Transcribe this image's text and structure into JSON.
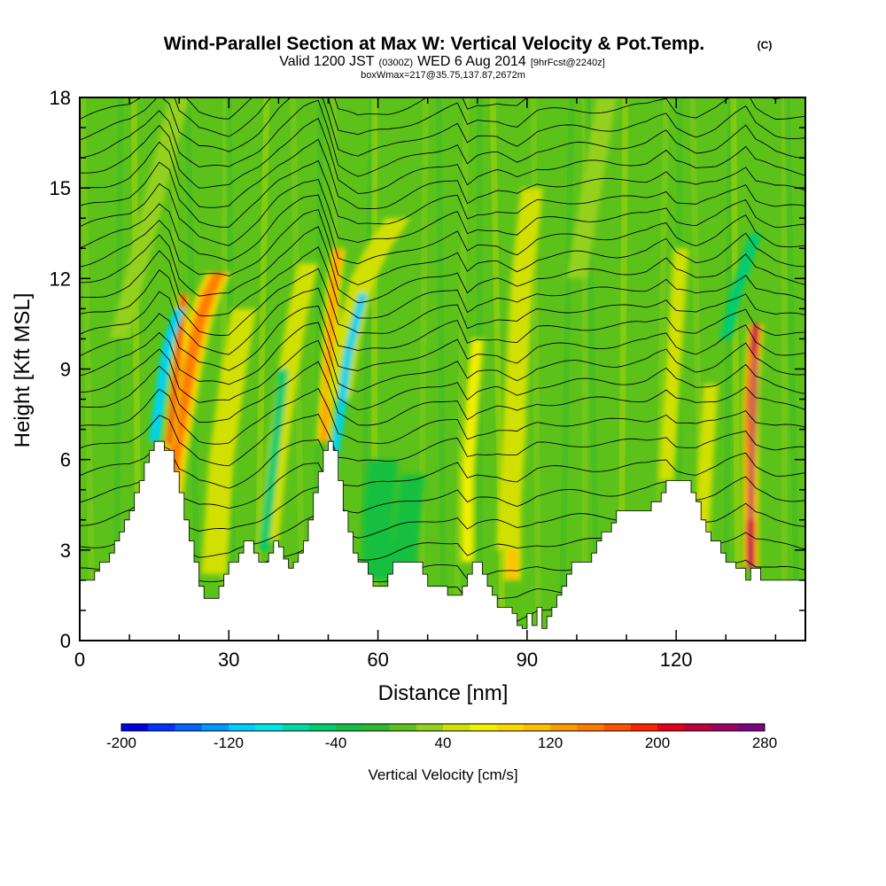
{
  "chart_data": {
    "type": "heatmap",
    "title": "Wind-Parallel Section at Max W: Vertical Velocity & Pot.Temp.",
    "title_mark": "(C)",
    "subtitle": {
      "valid": "Valid 1200 JST",
      "zulu": "(0300Z)",
      "date": "WED 6 Aug 2014",
      "fcst": "[9hrFcst@2240z]"
    },
    "subtitle2": "boxWmax=217@35.75,137.87,2672m",
    "xlabel": "Distance [nm]",
    "ylabel": "Height [Kft MSL]",
    "xlim": [
      0,
      146
    ],
    "ylim": [
      0,
      18
    ],
    "xticks": [
      "0",
      "30",
      "60",
      "90",
      "120"
    ],
    "xtick_values": [
      0,
      30,
      60,
      90,
      120
    ],
    "yticks": [
      "0",
      "3",
      "6",
      "9",
      "12",
      "15",
      "18"
    ],
    "ytick_values": [
      0,
      3,
      6,
      9,
      12,
      15,
      18
    ],
    "background_fill": "#5cc21a",
    "color_scale": {
      "label": "Vertical Velocity [cm/s]",
      "min": -200,
      "max": 280,
      "step": 20,
      "tick_labels": [
        "-200",
        "-120",
        "-40",
        "40",
        "120",
        "200",
        "280"
      ],
      "tick_values": [
        -200,
        -120,
        -40,
        40,
        120,
        200,
        280
      ],
      "colors": [
        "#0000e6",
        "#0033ff",
        "#0066ff",
        "#0099ff",
        "#00ccff",
        "#00e6e6",
        "#00d9a6",
        "#00cc70",
        "#12bf40",
        "#2eb82e",
        "#5cc21a",
        "#94d11a",
        "#d1e000",
        "#f0f000",
        "#ffd700",
        "#ffbf00",
        "#ff9a00",
        "#ff7a00",
        "#ff5200",
        "#ff2200",
        "#e6001a",
        "#c0003a",
        "#a00060",
        "#800080"
      ]
    },
    "terrain": {
      "x": [
        0,
        2,
        3,
        4,
        5,
        6,
        7,
        8,
        9,
        10,
        11,
        12,
        13,
        14,
        15,
        16,
        17,
        18,
        19,
        20,
        21,
        22,
        23,
        24,
        25,
        26,
        27,
        28,
        29,
        30,
        31,
        32,
        33,
        34,
        35,
        36,
        37,
        38,
        39,
        40,
        41,
        42,
        43,
        44,
        45,
        46,
        47,
        48,
        49,
        50,
        51,
        52,
        53,
        54,
        55,
        56,
        57,
        58,
        59,
        60,
        61,
        62,
        63,
        64,
        65,
        66,
        67,
        68,
        69,
        70,
        71,
        72,
        73,
        74,
        75,
        76,
        77,
        78,
        79,
        80,
        81,
        82,
        83,
        84,
        85,
        86,
        87,
        88,
        89,
        90,
        91,
        92,
        93,
        94,
        95,
        96,
        97,
        98,
        99,
        100,
        101,
        102,
        103,
        104,
        105,
        106,
        107,
        108,
        109,
        110,
        111,
        112,
        113,
        114,
        115,
        116,
        117,
        118,
        119,
        120,
        121,
        122,
        123,
        124,
        125,
        126,
        127,
        128,
        129,
        130,
        131,
        132,
        133,
        134,
        135,
        136,
        137,
        138,
        139,
        140,
        141,
        142,
        143,
        144,
        146
      ],
      "height": [
        2.0,
        2.0,
        2.3,
        2.6,
        2.6,
        2.9,
        3.3,
        3.6,
        4.0,
        4.3,
        4.9,
        5.3,
        5.9,
        6.3,
        6.6,
        6.6,
        6.3,
        6.3,
        5.6,
        4.9,
        4.0,
        3.3,
        2.6,
        1.8,
        1.4,
        1.4,
        1.4,
        1.8,
        2.2,
        2.6,
        2.6,
        2.9,
        3.3,
        3.3,
        2.9,
        2.6,
        2.6,
        2.9,
        3.3,
        3.1,
        2.7,
        2.4,
        2.6,
        2.9,
        3.3,
        4.0,
        4.9,
        5.6,
        6.3,
        6.6,
        6.3,
        5.3,
        4.3,
        3.6,
        2.9,
        2.6,
        2.6,
        2.2,
        1.8,
        1.8,
        1.8,
        2.2,
        2.6,
        2.6,
        2.6,
        2.6,
        2.6,
        2.6,
        2.2,
        1.8,
        1.8,
        1.8,
        1.8,
        1.5,
        1.5,
        1.5,
        1.8,
        2.2,
        2.6,
        2.6,
        2.2,
        1.8,
        1.5,
        1.1,
        1.1,
        1.1,
        0.9,
        0.5,
        0.4,
        0.9,
        0.5,
        1.1,
        0.4,
        0.8,
        1.1,
        1.5,
        1.8,
        2.2,
        2.6,
        2.6,
        2.6,
        2.6,
        2.9,
        3.3,
        3.6,
        3.6,
        3.9,
        4.3,
        4.3,
        4.3,
        4.3,
        4.3,
        4.3,
        4.3,
        4.6,
        4.6,
        4.9,
        5.3,
        5.3,
        5.3,
        5.3,
        5.3,
        4.9,
        4.6,
        4.0,
        3.6,
        3.3,
        3.3,
        2.9,
        2.6,
        2.6,
        2.4,
        2.4,
        2.0,
        2.4,
        2.4,
        2.0,
        2.0,
        2.0,
        2.0,
        2.0,
        2.0,
        2.0,
        2.0,
        2.0,
        2.0,
        2.0
      ]
    },
    "features": [
      {
        "kind": "updraft",
        "x": [
          17,
          19,
          22,
          24,
          26,
          28
        ],
        "y": [
          3.0,
          6.0,
          9.0,
          10.5,
          11.5,
          12.2
        ],
        "w": 2.6,
        "value": 150
      },
      {
        "kind": "updraft",
        "x": [
          18,
          19.5,
          21
        ],
        "y": [
          6.5,
          9.0,
          11.5
        ],
        "w": 1.1,
        "value": 200
      },
      {
        "kind": "downdraft",
        "x": [
          15,
          16.5,
          18,
          20
        ],
        "y": [
          6.6,
          8.5,
          10.0,
          11.0
        ],
        "w": 1.2,
        "value": -110
      },
      {
        "kind": "updraft",
        "x": [
          27,
          28.5,
          31,
          33
        ],
        "y": [
          2.2,
          6,
          9,
          11
        ],
        "w": 2.5,
        "value": 50
      },
      {
        "kind": "updraft",
        "x": [
          38,
          40,
          42,
          44,
          46
        ],
        "y": [
          3.3,
          6.5,
          9,
          11,
          12.5
        ],
        "w": 2.0,
        "value": 45
      },
      {
        "kind": "downdraft",
        "x": [
          37,
          39,
          41
        ],
        "y": [
          3.0,
          6.0,
          9.0
        ],
        "w": 1.0,
        "value": -60
      },
      {
        "kind": "updraft",
        "x": [
          49,
          50,
          51,
          52
        ],
        "y": [
          6.6,
          9.0,
          11.5,
          13.0
        ],
        "w": 1.5,
        "value": 120
      },
      {
        "kind": "updraft",
        "x": [
          52,
          54,
          57,
          60,
          64
        ],
        "y": [
          8.0,
          10.0,
          12.0,
          13.0,
          14.0
        ],
        "w": 2.5,
        "value": 40
      },
      {
        "kind": "downdraft",
        "x": [
          50,
          52,
          54,
          57
        ],
        "y": [
          5.0,
          7.0,
          9.5,
          11.5
        ],
        "w": 1.0,
        "value": -120
      },
      {
        "kind": "updraft",
        "x": [
          78,
          78,
          79,
          80
        ],
        "y": [
          2.6,
          5.5,
          8.0,
          10.0
        ],
        "w": 1.4,
        "value": 70
      },
      {
        "kind": "updraft",
        "x": [
          87,
          87,
          88,
          88
        ],
        "y": [
          2.0,
          4.5,
          7.0,
          9.0
        ],
        "w": 1.8,
        "value": 110
      },
      {
        "kind": "updraft",
        "x": [
          86,
          87,
          88,
          89,
          91
        ],
        "y": [
          3.0,
          6.0,
          9.0,
          12.0,
          15.0
        ],
        "w": 2.2,
        "value": 40
      },
      {
        "kind": "updraft",
        "x": [
          118,
          119,
          120,
          121
        ],
        "y": [
          5.3,
          8.0,
          10.5,
          13.0
        ],
        "w": 1.5,
        "value": 55
      },
      {
        "kind": "downdraft",
        "x": [
          130,
          132,
          134,
          136
        ],
        "y": [
          10.0,
          11.5,
          12.5,
          13.5
        ],
        "w": 1.2,
        "value": -60
      },
      {
        "kind": "updraft",
        "x": [
          135,
          135,
          135,
          136
        ],
        "y": [
          2.4,
          5.0,
          8.0,
          10.5
        ],
        "w": 1.6,
        "value": 240
      },
      {
        "kind": "updraft",
        "x": [
          135,
          135.5,
          136
        ],
        "y": [
          4.0,
          7.0,
          9.5
        ],
        "w": 0.8,
        "value": 280
      },
      {
        "kind": "updraft",
        "x": [
          8,
          11,
          14,
          17,
          20
        ],
        "y": [
          10.0,
          12.0,
          14.0,
          16.0,
          18.0
        ],
        "w": 2.0,
        "value": 35
      },
      {
        "kind": "downdraft",
        "x": [
          60,
          60,
          61
        ],
        "y": [
          2.0,
          4.0,
          6.0
        ],
        "w": 3.0,
        "value": -35
      },
      {
        "kind": "downdraft",
        "x": [
          65,
          66,
          67
        ],
        "y": [
          2.0,
          4.0,
          5.5
        ],
        "w": 2.5,
        "value": -30
      },
      {
        "kind": "updraft",
        "x": [
          125,
          126,
          127
        ],
        "y": [
          3.0,
          6.0,
          8.5
        ],
        "w": 1.5,
        "value": 40
      },
      {
        "kind": "updraft",
        "x": [
          100,
          102,
          104,
          106
        ],
        "y": [
          12.0,
          14.0,
          16.0,
          18.0
        ],
        "w": 2.0,
        "value": 35
      }
    ],
    "theta_contours": {
      "base_levels": [
        0.8,
        1.5,
        2.3,
        3.1,
        3.9,
        4.7,
        5.5,
        6.3,
        7.0,
        7.7,
        8.3,
        8.9,
        9.5,
        10.1,
        10.7,
        11.3,
        11.9,
        12.5,
        13.1,
        13.7,
        14.3,
        14.9,
        15.5,
        16.1,
        16.7,
        17.3,
        17.9
      ],
      "wave_x": [
        0,
        5,
        10,
        13,
        16,
        18,
        20,
        24,
        30,
        36,
        40,
        45,
        48,
        50,
        52,
        56,
        62,
        70,
        76,
        78,
        80,
        84,
        88,
        92,
        100,
        108,
        114,
        118,
        120,
        124,
        128,
        132,
        134,
        136,
        140,
        146
      ],
      "wave_dy": [
        0,
        0.2,
        0.5,
        0.9,
        1.5,
        1.2,
        0.2,
        -0.4,
        -0.5,
        0.2,
        0.9,
        1.5,
        1.7,
        0.8,
        -0.3,
        -0.6,
        -0.4,
        0.1,
        0.4,
        -0.3,
        -0.1,
        0.0,
        -0.2,
        0.2,
        0.3,
        0.3,
        0.4,
        0.7,
        0.3,
        0.1,
        0.3,
        0.7,
        0.9,
        0.4,
        0.1,
        0.0
      ]
    }
  }
}
